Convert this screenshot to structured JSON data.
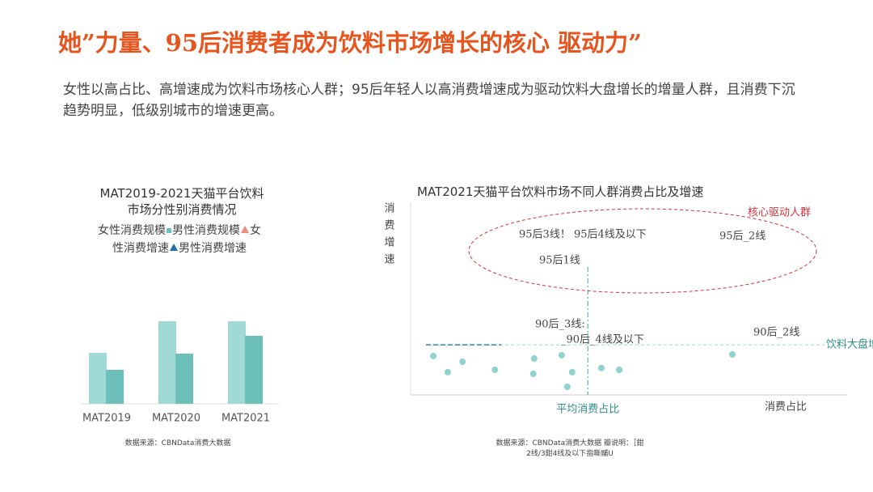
{
  "header": {
    "title": "她”力量、95后消费者成为饮料市场增长的核心 驱动力”",
    "description": "女性以高占比、高增速成为饮料市场核心人群；95后年轻人以高消费增速成为驱动饮料大盘增长的增量人群，且消费下沉趋势明显，低级别城市的增速更高。"
  },
  "chart_data": [
    {
      "type": "bar",
      "title": "MAT2019-2021天猫平台饮料\n市场分性别消费情况",
      "categories": [
        "MAT2019",
        "MAT2020",
        "MAT2021"
      ],
      "ylim": [
        0,
        110
      ],
      "series": [
        {
          "name": "女性消费规模",
          "color": "#a0d9d5",
          "values": [
            63,
            102,
            102
          ]
        },
        {
          "name": "男性消费规模",
          "color": "#6cc0b9",
          "marker": "square",
          "values": [
            42,
            62,
            84
          ]
        },
        {
          "name": "女性消费增速",
          "color": "#f08a7e",
          "marker": "triangle",
          "values": [
            null,
            null,
            null
          ]
        },
        {
          "name": "男性消费增速",
          "color": "#1f6fb0",
          "marker": "triangle",
          "values": [
            null,
            null,
            null
          ]
        }
      ],
      "source": "数据来源：CBNData消费大数据"
    },
    {
      "type": "scatter",
      "title": "MAT2021天猫平台饮料市场不同人群消费占比及增速",
      "xlabel": "消费占比",
      "ylabel": "消费增速",
      "xlim": [
        0,
        100
      ],
      "ylim": [
        0,
        100
      ],
      "color": "#8fd3cc",
      "x": [
        5.2,
        8.5,
        11.9,
        19.3,
        28.3,
        28.1,
        34.6,
        37,
        35.9,
        43.7,
        47.8,
        73.7
      ],
      "values": [
        20.2,
        11.8,
        17.2,
        13,
        18.9,
        10.9,
        20.6,
        11.8,
        4.2,
        13.9,
        13,
        21
      ],
      "hline": 26,
      "hline_label": "饮料大盘增速",
      "vline": 40.6,
      "vline_label": "平均消费占比",
      "annotations": [
        "核心驱动人群",
        "95后3线！ 95后4线及以下",
        "95后_2线",
        "95后1线",
        "90后_3线:",
        "_90后_4线及以下",
        "90后_2线"
      ],
      "source": "数据来源：CBNData消费大数据 瓣说明：［鉗\n2线/3鉗4线及以下指嘶鬴U"
    }
  ]
}
